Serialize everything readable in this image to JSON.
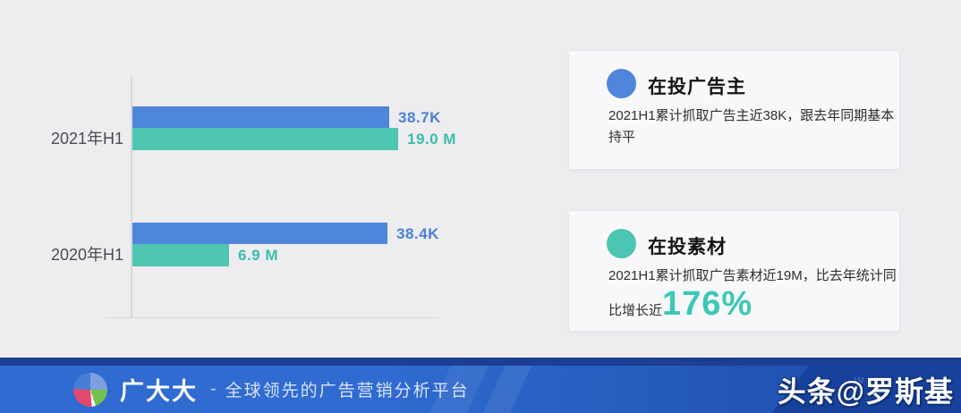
{
  "background": "#edecef",
  "chart_data": {
    "type": "bar",
    "orientation": "horizontal",
    "title": "",
    "categories": [
      "2021年H1",
      "2020年H1"
    ],
    "series": [
      {
        "name": "在投广告主",
        "unit": "K",
        "color": "#4e86db",
        "label_color": "#4a7fd8",
        "values": [
          38.7,
          38.4
        ],
        "labels": [
          "38.7K",
          "38.4K"
        ]
      },
      {
        "name": "在投素材",
        "unit": "M",
        "color": "#4ec5b1",
        "label_color": "#3abcad",
        "values": [
          19.0,
          6.9
        ],
        "labels": [
          "19.0 M",
          "6.9 M"
        ]
      }
    ],
    "grid": false,
    "axis_color": "#d7d6d9",
    "legend_position": "right-cards",
    "value_labels_shown": true
  },
  "cards": [
    {
      "title": "在投广告主",
      "dot_color": "#4f86db",
      "body": "2021H1累计抓取广告主近38K，跟去年同期基本持平"
    },
    {
      "title": "在投素材",
      "dot_color": "#4cc5b2",
      "body_prefix": "2021H1累计抓取广告素材近19M，比去年统计同比增长近",
      "body_highlight": "176%",
      "highlight_color": "#3cc7b6"
    }
  ],
  "footer": {
    "brand": "广大大",
    "separator": "-",
    "tagline": "全球领先的广告营销分析平台",
    "faint_watermark": "www",
    "watermark": "头条@罗斯基",
    "strip_color": "#1c3f93",
    "bar_gradient": [
      "#2f6bd0",
      "#1a49a6"
    ],
    "corner_color": "#16419c",
    "logo_colors": {
      "blue": "#4a7ed6",
      "light_blue": "#7e9fe2",
      "pink": "#e3486f",
      "green": "#74c24e"
    }
  }
}
